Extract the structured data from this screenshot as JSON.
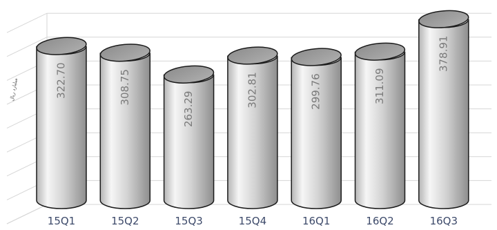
{
  "chart_data": {
    "type": "bar",
    "style": "3d-cylinder",
    "categories": [
      "15Q1",
      "15Q2",
      "15Q3",
      "15Q4",
      "16Q1",
      "16Q2",
      "16Q3"
    ],
    "values": [
      322.7,
      308.75,
      263.29,
      302.81,
      299.76,
      311.09,
      378.91
    ],
    "value_labels": [
      "322.70",
      "308.75",
      "263.29",
      "302.81",
      "299.76",
      "311.09",
      "378.91"
    ],
    "ylabel": "ميليارد ريال",
    "ylim": [
      0,
      400
    ],
    "grid": true,
    "legend": "none",
    "colors": {
      "bar_light": "#f4f4f4",
      "bar_mid": "#c4c4c4",
      "bar_dark": "#8a8a8a",
      "top": "#9a9a9a",
      "outline": "#1a1a1a",
      "grid": "#d6d6d6",
      "category_text": "#3d4a6a",
      "value_text": "#7a7a7a"
    }
  }
}
